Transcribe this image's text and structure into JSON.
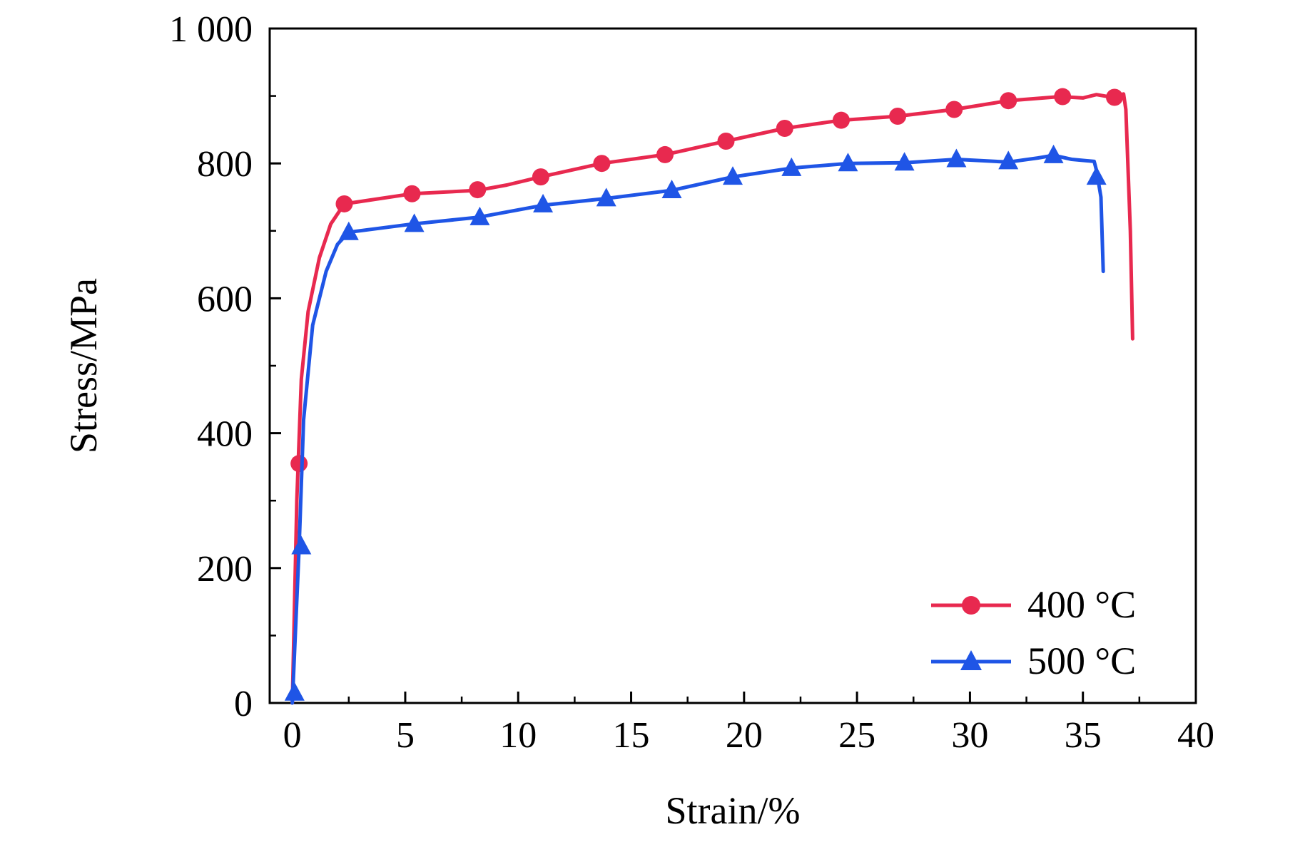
{
  "chart_data": {
    "type": "line",
    "title": "",
    "xlabel": "Strain/%",
    "ylabel": "Stress/MPa",
    "xlim": [
      -1,
      40
    ],
    "ylim": [
      0,
      1000
    ],
    "x_ticks": [
      0,
      5,
      10,
      15,
      20,
      25,
      30,
      35,
      40
    ],
    "x_tick_labels": [
      "0",
      "5",
      "10",
      "15",
      "20",
      "25",
      "30",
      "35",
      "40"
    ],
    "y_ticks": [
      0,
      200,
      400,
      600,
      800,
      1000
    ],
    "y_tick_labels": [
      "0",
      "200",
      "400",
      "600",
      "800",
      "1 000"
    ],
    "grid": false,
    "legend_position": "bottom-right",
    "series": [
      {
        "name": "400 °C",
        "color": "#e8294f",
        "marker": "circle",
        "line": [
          [
            0,
            0
          ],
          [
            0.2,
            300
          ],
          [
            0.4,
            480
          ],
          [
            0.7,
            580
          ],
          [
            1.2,
            660
          ],
          [
            1.7,
            710
          ],
          [
            2.3,
            740
          ],
          [
            5.3,
            755
          ],
          [
            8.2,
            760
          ],
          [
            9.5,
            768
          ],
          [
            11.0,
            780
          ],
          [
            13.7,
            800
          ],
          [
            16.5,
            813
          ],
          [
            19.2,
            833
          ],
          [
            21.8,
            852
          ],
          [
            24.3,
            864
          ],
          [
            26.8,
            870
          ],
          [
            29.3,
            880
          ],
          [
            31.7,
            893
          ],
          [
            34.0,
            899
          ],
          [
            35.0,
            897
          ],
          [
            35.6,
            902
          ],
          [
            36.3,
            898
          ],
          [
            36.8,
            903
          ],
          [
            36.9,
            880
          ],
          [
            37.1,
            700
          ],
          [
            37.2,
            540
          ]
        ],
        "markers": [
          [
            0.3,
            355
          ],
          [
            2.3,
            740
          ],
          [
            5.3,
            755
          ],
          [
            8.2,
            761
          ],
          [
            11.0,
            780
          ],
          [
            13.7,
            800
          ],
          [
            16.5,
            813
          ],
          [
            19.2,
            833
          ],
          [
            21.8,
            852
          ],
          [
            24.3,
            864
          ],
          [
            26.8,
            870
          ],
          [
            29.3,
            880
          ],
          [
            31.7,
            893
          ],
          [
            34.1,
            899
          ],
          [
            36.4,
            898
          ]
        ]
      },
      {
        "name": "500 °C",
        "color": "#1f55e6",
        "marker": "triangle",
        "line": [
          [
            0,
            0
          ],
          [
            0.3,
            230
          ],
          [
            0.5,
            420
          ],
          [
            0.9,
            560
          ],
          [
            1.5,
            640
          ],
          [
            2.0,
            680
          ],
          [
            2.5,
            698
          ],
          [
            5.3,
            710
          ],
          [
            8.2,
            720
          ],
          [
            11.1,
            738
          ],
          [
            13.9,
            748
          ],
          [
            16.8,
            760
          ],
          [
            19.5,
            780
          ],
          [
            22.1,
            793
          ],
          [
            24.6,
            800
          ],
          [
            27.1,
            801
          ],
          [
            29.4,
            806
          ],
          [
            31.7,
            802
          ],
          [
            33.0,
            808
          ],
          [
            33.7,
            812
          ],
          [
            34.5,
            806
          ],
          [
            35.5,
            803
          ],
          [
            35.6,
            790
          ],
          [
            35.8,
            750
          ],
          [
            35.9,
            640
          ]
        ],
        "markers": [
          [
            0.1,
            15
          ],
          [
            0.4,
            232
          ],
          [
            2.5,
            698
          ],
          [
            5.4,
            710
          ],
          [
            8.3,
            720
          ],
          [
            11.1,
            739
          ],
          [
            13.9,
            748
          ],
          [
            16.8,
            760
          ],
          [
            19.5,
            780
          ],
          [
            22.1,
            793
          ],
          [
            24.6,
            800
          ],
          [
            27.1,
            801
          ],
          [
            29.4,
            806
          ],
          [
            31.7,
            803
          ],
          [
            33.7,
            812
          ],
          [
            35.6,
            780
          ]
        ]
      }
    ]
  }
}
